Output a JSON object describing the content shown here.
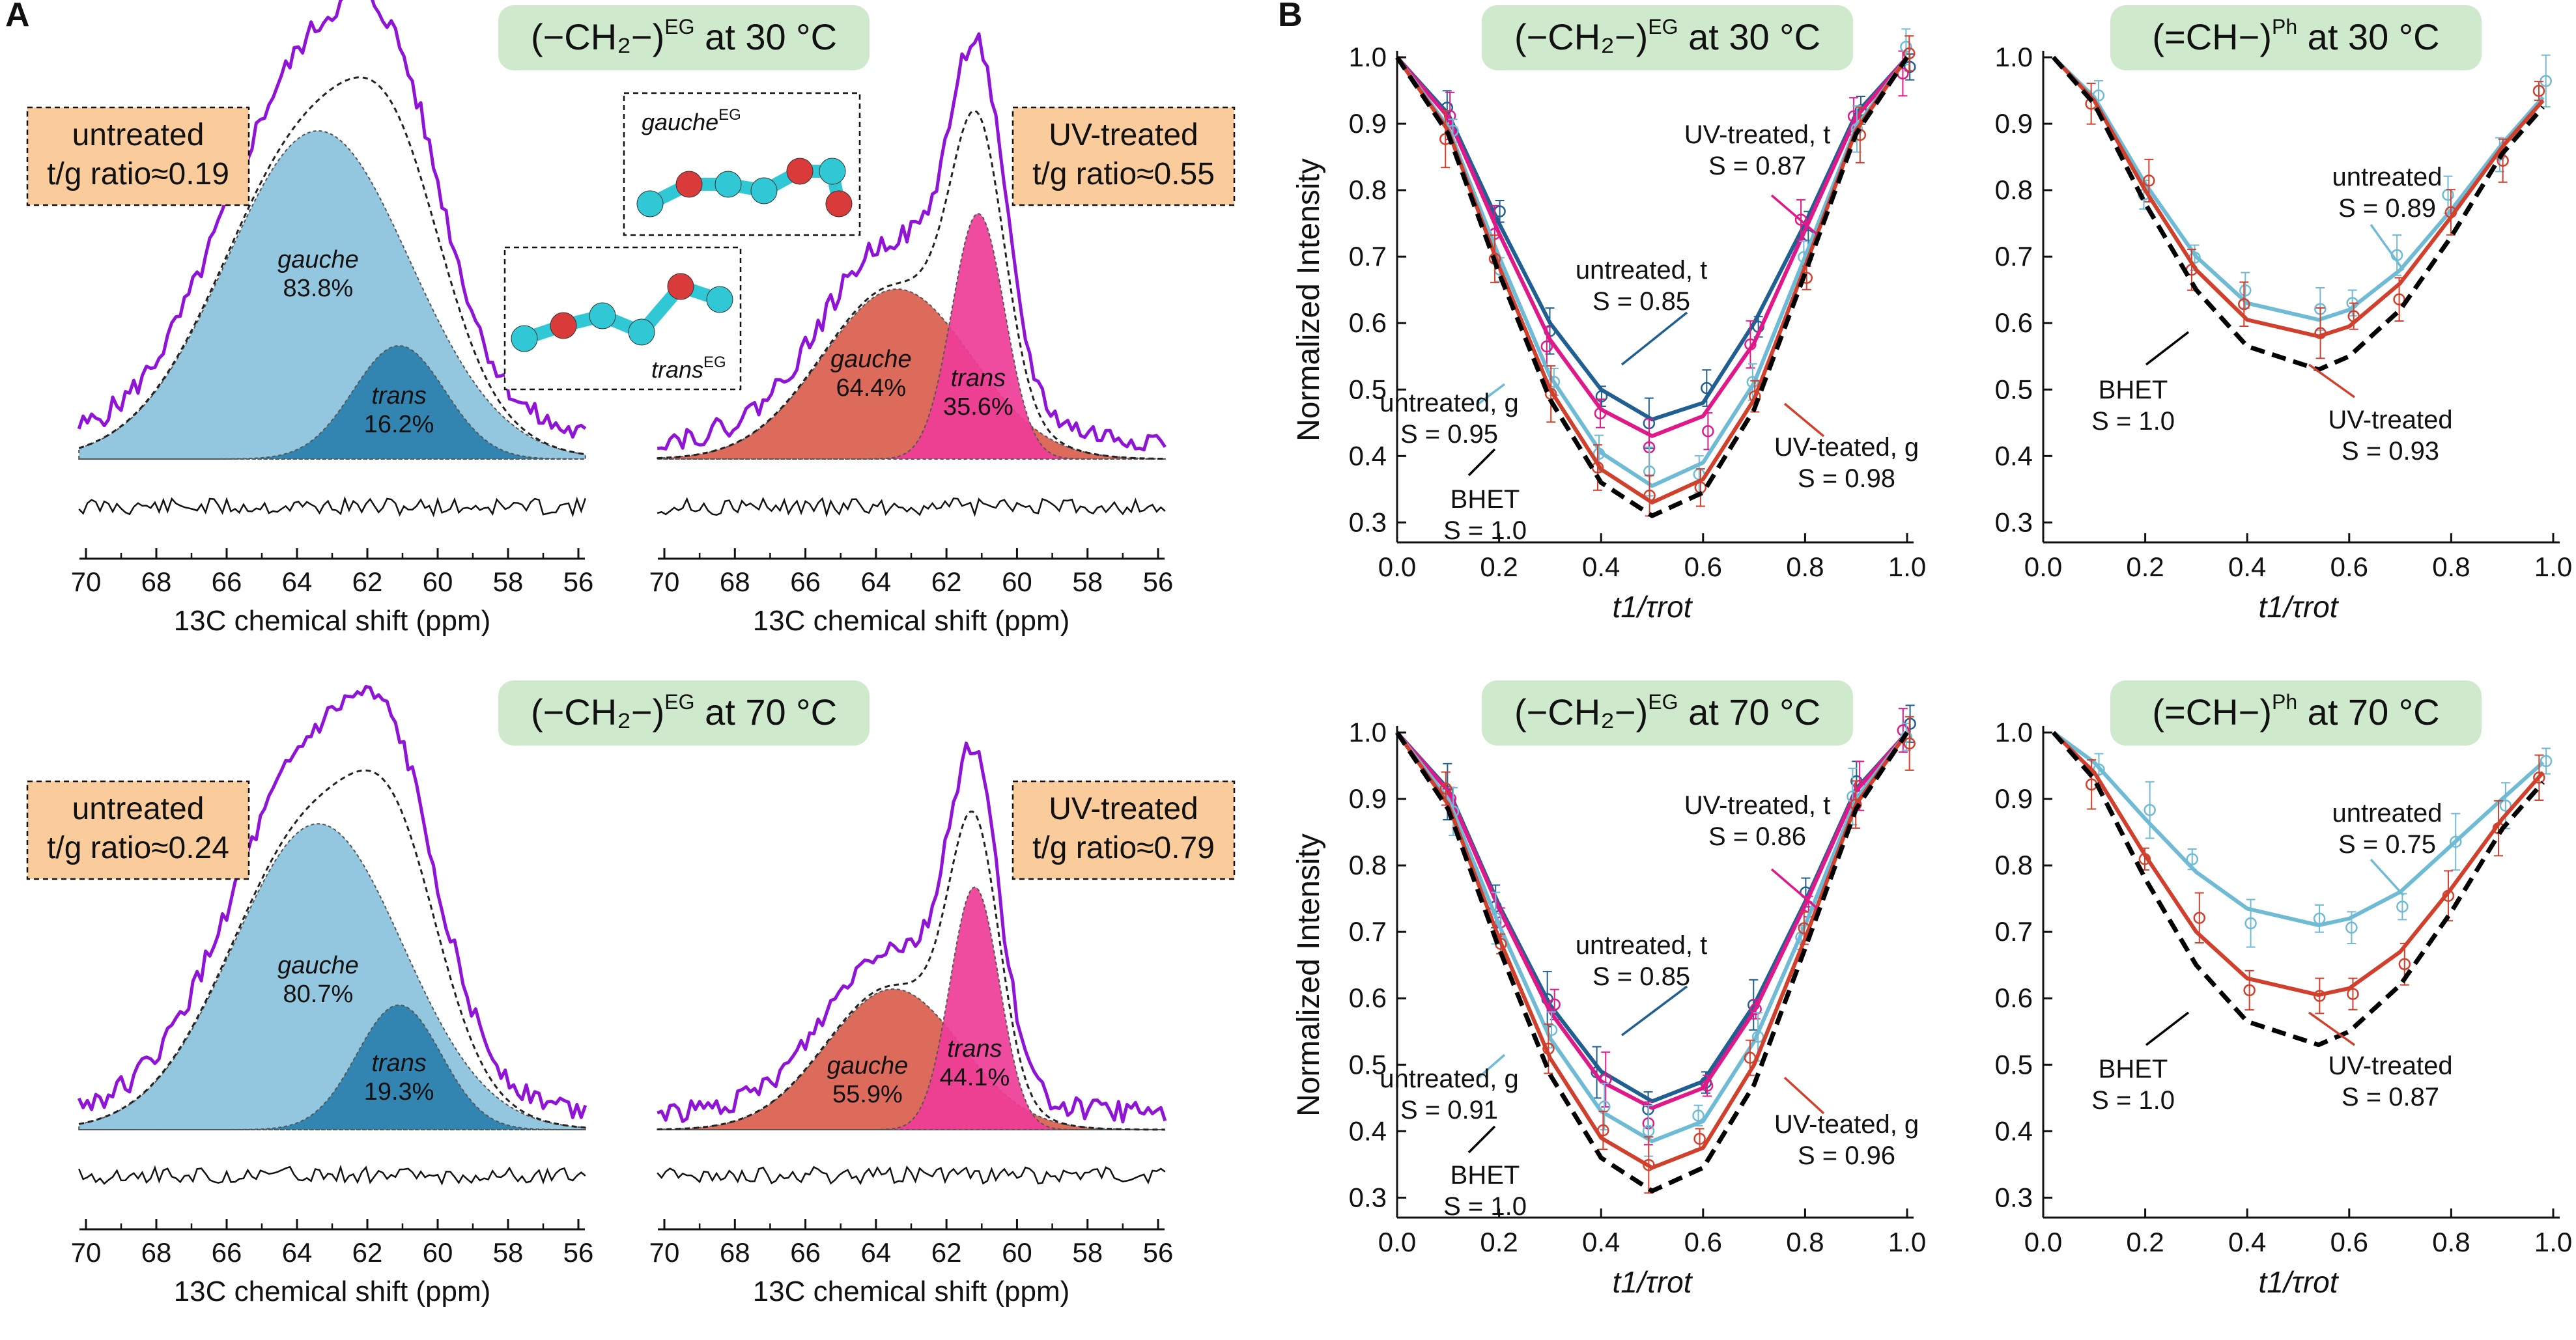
{
  "figure": {
    "panel_a_letter": "A",
    "panel_b_letter": "B",
    "colors": {
      "gauche_untreated": "#93c7df",
      "trans_untreated": "#2a7fad",
      "gauche_uv": "#dd6b5c",
      "trans_uv": "#ee3d98",
      "exp_curve": "#8f14d6",
      "title_box": "#cfe9cc",
      "label_box": "#fbcc9b",
      "untreated_t": "#1f5f91",
      "untreated_g": "#6fbbd6",
      "uv_t": "#e0198a",
      "uv_g": "#d0402c",
      "bhet": "#000000",
      "atom_c": "#30c8d4",
      "atom_o": "#d93b3b",
      "atom_h": "#d8d8d8"
    }
  },
  "chart_data": [
    {
      "id": "a1",
      "type": "nmr-deconvolution",
      "title": "(−CH₂−)EG at 30 °C",
      "title_main": "(−CH₂−)",
      "title_sup": "EG",
      "title_tail": " at 30 °C",
      "sample_label": "untreated",
      "ratio_label": "t/g ratio≈0.19",
      "gauche_name": "gauche",
      "gauche_pct": "83.8%",
      "trans_name": "trans",
      "trans_pct": "16.2%",
      "peaks": {
        "gauche": {
          "center": 63.4,
          "amplitude": 0.84,
          "width": 2.6
        },
        "trans": {
          "center": 61.1,
          "amplitude": 0.29,
          "width": 1.3
        }
      },
      "xlabel": "13C chemical shift (ppm)",
      "xlim": [
        70,
        56
      ],
      "xticks": [
        "70",
        "68",
        "66",
        "64",
        "62",
        "60",
        "58",
        "56"
      ]
    },
    {
      "id": "a2",
      "type": "nmr-deconvolution",
      "sample_label": "UV-treated",
      "ratio_label": "t/g ratio≈0.55",
      "gauche_name": "gauche",
      "gauche_pct": "64.4%",
      "trans_name": "trans",
      "trans_pct": "35.6%",
      "peaks": {
        "gauche": {
          "center": 63.4,
          "amplitude": 0.45,
          "width": 2.1
        },
        "trans": {
          "center": 61.1,
          "amplitude": 0.65,
          "width": 0.75
        }
      },
      "xlabel": "13C chemical shift (ppm)",
      "xlim": [
        70,
        56
      ],
      "xticks": [
        "70",
        "68",
        "66",
        "64",
        "62",
        "60",
        "58",
        "56"
      ],
      "inset_labels": {
        "gauche": "gauche",
        "trans": "trans",
        "sup": "EG"
      }
    },
    {
      "id": "a3",
      "type": "nmr-deconvolution",
      "title": "(−CH₂−)EG at 70 °C",
      "title_main": "(−CH₂−)",
      "title_sup": "EG",
      "title_tail": " at 70 °C",
      "sample_label": "untreated",
      "ratio_label": "t/g ratio≈0.24",
      "gauche_name": "gauche",
      "gauche_pct": "80.7%",
      "trans_name": "trans",
      "trans_pct": "19.3%",
      "peaks": {
        "gauche": {
          "center": 63.4,
          "amplitude": 0.81,
          "width": 2.4
        },
        "trans": {
          "center": 61.1,
          "amplitude": 0.33,
          "width": 1.2
        }
      },
      "xlabel": "13C chemical shift (ppm)",
      "xlim": [
        70,
        56
      ],
      "xticks": [
        "70",
        "68",
        "66",
        "64",
        "62",
        "60",
        "58",
        "56"
      ]
    },
    {
      "id": "a4",
      "type": "nmr-deconvolution",
      "sample_label": "UV-treated",
      "ratio_label": "t/g ratio≈0.79",
      "gauche_name": "gauche",
      "gauche_pct": "55.9%",
      "trans_name": "trans",
      "trans_pct": "44.1%",
      "peaks": {
        "gauche": {
          "center": 63.5,
          "amplitude": 0.4,
          "width": 1.9
        },
        "trans": {
          "center": 61.2,
          "amplitude": 0.69,
          "width": 0.7
        }
      },
      "xlabel": "13C chemical shift (ppm)",
      "xlim": [
        70,
        56
      ],
      "xticks": [
        "70",
        "68",
        "66",
        "64",
        "62",
        "60",
        "58",
        "56"
      ]
    },
    {
      "id": "b1",
      "type": "line",
      "title": "(−CH₂−)EG at 30 °C",
      "title_main": "(−CH₂−)",
      "title_sup": "EG",
      "title_tail": " at 30 °C",
      "ylabel": "Normalized Intensity",
      "xlabel": "t1/τrot",
      "xlim": [
        0,
        1
      ],
      "ylim": [
        0.27,
        1.0
      ],
      "xticks": [
        "0.0",
        "0.2",
        "0.4",
        "0.6",
        "0.8",
        "1.0"
      ],
      "yticks": [
        "0.3",
        "0.4",
        "0.5",
        "0.6",
        "0.7",
        "0.8",
        "0.9",
        "1.0"
      ],
      "x": [
        0.0,
        0.1,
        0.2,
        0.3,
        0.4,
        0.5,
        0.6,
        0.7,
        0.8,
        0.9,
        1.0
      ],
      "series": [
        {
          "name": "untreated, t",
          "S": "S = 0.85",
          "color_key": "untreated_t",
          "values": [
            1.0,
            0.915,
            0.75,
            0.6,
            0.5,
            0.455,
            0.48,
            0.6,
            0.75,
            0.915,
            1.0
          ]
        },
        {
          "name": "UV-treated, t",
          "S": "S = 0.87",
          "color_key": "uv_t",
          "values": [
            1.0,
            0.91,
            0.735,
            0.575,
            0.47,
            0.43,
            0.46,
            0.57,
            0.74,
            0.91,
            1.0
          ]
        },
        {
          "name": "untreated, g",
          "S": "S = 0.95",
          "color_key": "untreated_g",
          "values": [
            1.0,
            0.895,
            0.7,
            0.52,
            0.405,
            0.355,
            0.39,
            0.51,
            0.7,
            0.895,
            1.0
          ]
        },
        {
          "name": "UV-teated, g",
          "S": "S = 0.98",
          "color_key": "uv_g",
          "values": [
            1.0,
            0.89,
            0.685,
            0.5,
            0.38,
            0.33,
            0.365,
            0.485,
            0.685,
            0.89,
            1.0
          ]
        },
        {
          "name": "BHET",
          "S": "S = 1.0",
          "color_key": "bhet",
          "dashed": true,
          "values": [
            1.0,
            0.885,
            0.675,
            0.485,
            0.36,
            0.31,
            0.345,
            0.47,
            0.675,
            0.885,
            1.0
          ]
        }
      ]
    },
    {
      "id": "b2",
      "type": "line",
      "title": "(=CH−)Ph at 30 °C",
      "title_main": "(=CH−)",
      "title_sup": "Ph",
      "title_tail": " at 30 °C",
      "xlabel": "t1/τrot",
      "xlim": [
        0,
        1
      ],
      "ylim": [
        0.27,
        1.0
      ],
      "xticks": [
        "0.0",
        "0.2",
        "0.4",
        "0.6",
        "0.8",
        "1.0"
      ],
      "yticks": [
        "0.3",
        "0.4",
        "0.5",
        "0.6",
        "0.7",
        "0.8",
        "0.9",
        "1.0"
      ],
      "x": [
        0.02,
        0.1,
        0.2,
        0.3,
        0.4,
        0.54,
        0.6,
        0.7,
        0.8,
        0.9,
        0.98
      ],
      "series": [
        {
          "name": "untreated",
          "S": "S = 0.89",
          "color_key": "untreated_g",
          "values": [
            1.0,
            0.94,
            0.81,
            0.7,
            0.63,
            0.605,
            0.62,
            0.68,
            0.77,
            0.87,
            0.94
          ]
        },
        {
          "name": "UV-treated",
          "S": "S = 0.93",
          "color_key": "uv_g",
          "values": [
            1.0,
            0.935,
            0.8,
            0.68,
            0.605,
            0.58,
            0.595,
            0.66,
            0.76,
            0.865,
            0.935
          ]
        },
        {
          "name": "BHET",
          "S": "S = 1.0",
          "color_key": "bhet",
          "dashed": true,
          "values": [
            1.0,
            0.93,
            0.78,
            0.65,
            0.565,
            0.53,
            0.55,
            0.62,
            0.73,
            0.855,
            0.925
          ]
        }
      ]
    },
    {
      "id": "b3",
      "type": "line",
      "title": "(−CH₂−)EG at 70 °C",
      "title_main": "(−CH₂−)",
      "title_sup": "EG",
      "title_tail": " at 70 °C",
      "ylabel": "Normalized Intensity",
      "xlabel": "t1/τrot",
      "xlim": [
        0,
        1
      ],
      "ylim": [
        0.27,
        1.0
      ],
      "xticks": [
        "0.0",
        "0.2",
        "0.4",
        "0.6",
        "0.8",
        "1.0"
      ],
      "yticks": [
        "0.3",
        "0.4",
        "0.5",
        "0.6",
        "0.7",
        "0.8",
        "0.9",
        "1.0"
      ],
      "x": [
        0.0,
        0.1,
        0.2,
        0.3,
        0.4,
        0.5,
        0.6,
        0.7,
        0.8,
        0.9,
        1.0
      ],
      "series": [
        {
          "name": "untreated, t",
          "S": "S = 0.85",
          "color_key": "untreated_t",
          "values": [
            1.0,
            0.915,
            0.74,
            0.59,
            0.49,
            0.445,
            0.475,
            0.59,
            0.745,
            0.915,
            1.0
          ]
        },
        {
          "name": "UV-treated, t",
          "S": "S = 0.86",
          "color_key": "uv_t",
          "values": [
            1.0,
            0.912,
            0.735,
            0.58,
            0.475,
            0.435,
            0.465,
            0.58,
            0.74,
            0.912,
            1.0
          ]
        },
        {
          "name": "untreated, g",
          "S": "S = 0.91",
          "color_key": "untreated_g",
          "values": [
            1.0,
            0.9,
            0.71,
            0.54,
            0.43,
            0.385,
            0.415,
            0.535,
            0.71,
            0.9,
            1.0
          ]
        },
        {
          "name": "UV-teated, g",
          "S": "S = 0.96",
          "color_key": "uv_g",
          "values": [
            1.0,
            0.892,
            0.69,
            0.51,
            0.39,
            0.345,
            0.375,
            0.5,
            0.69,
            0.892,
            1.0
          ]
        },
        {
          "name": "BHET",
          "S": "S = 1.0",
          "color_key": "bhet",
          "dashed": true,
          "values": [
            1.0,
            0.885,
            0.675,
            0.485,
            0.36,
            0.31,
            0.345,
            0.47,
            0.675,
            0.885,
            1.0
          ]
        }
      ]
    },
    {
      "id": "b4",
      "type": "line",
      "title": "(=CH−)Ph at 70 °C",
      "title_main": "(=CH−)",
      "title_sup": "Ph",
      "title_tail": " at 70 °C",
      "xlabel": "t1/τrot",
      "xlim": [
        0,
        1
      ],
      "ylim": [
        0.27,
        1.0
      ],
      "xticks": [
        "0.0",
        "0.2",
        "0.4",
        "0.6",
        "0.8",
        "1.0"
      ],
      "yticks": [
        "0.3",
        "0.4",
        "0.5",
        "0.6",
        "0.7",
        "0.8",
        "0.9",
        "1.0"
      ],
      "x": [
        0.02,
        0.1,
        0.2,
        0.3,
        0.4,
        0.54,
        0.6,
        0.7,
        0.8,
        0.9,
        0.98
      ],
      "series": [
        {
          "name": "untreated",
          "S": "S = 0.75",
          "color_key": "untreated_g",
          "values": [
            1.0,
            0.955,
            0.87,
            0.79,
            0.735,
            0.71,
            0.72,
            0.76,
            0.83,
            0.9,
            0.955
          ]
        },
        {
          "name": "UV-treated",
          "S": "S = 0.87",
          "color_key": "uv_g",
          "values": [
            1.0,
            0.94,
            0.815,
            0.7,
            0.63,
            0.605,
            0.615,
            0.67,
            0.765,
            0.87,
            0.94
          ]
        },
        {
          "name": "BHET",
          "S": "S = 1.0",
          "color_key": "bhet",
          "dashed": true,
          "values": [
            1.0,
            0.93,
            0.78,
            0.65,
            0.565,
            0.53,
            0.55,
            0.62,
            0.73,
            0.855,
            0.925
          ]
        }
      ]
    }
  ]
}
